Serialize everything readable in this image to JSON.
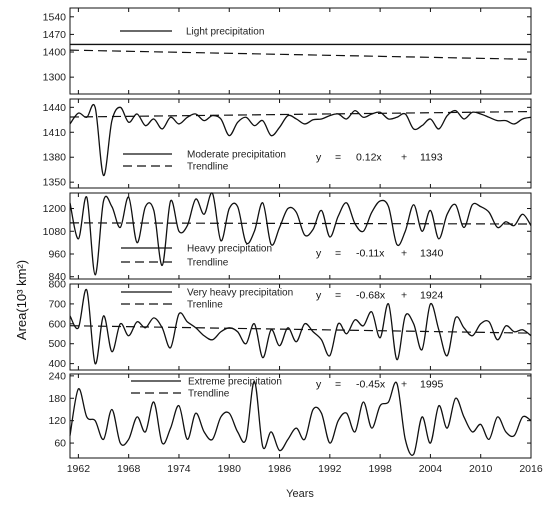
{
  "chart_data": {
    "type": "line",
    "ylabel": "Area(10³ km²)",
    "xlabel": "Years",
    "x_ticks": [
      1962,
      1968,
      1974,
      1980,
      1986,
      1992,
      1998,
      2004,
      2010,
      2016
    ],
    "xlim": [
      1961,
      2016
    ],
    "panels": [
      {
        "name": "light",
        "legend": [
          "Light precipitation"
        ],
        "equation": null,
        "ylim": [
          1233,
          1575
        ],
        "yticks": [
          1300,
          1400,
          1470,
          1540
        ],
        "x": [
          1961,
          2016
        ],
        "values": [
          1430,
          1430
        ]
      },
      {
        "name": "moderate",
        "legend": [
          "Moderate precipitation",
          "Trendline"
        ],
        "equation": [
          "y",
          "=",
          "0.12x",
          "+",
          "1193"
        ],
        "ylim": [
          1343,
          1450
        ],
        "yticks": [
          1350,
          1380,
          1410,
          1440
        ],
        "trend": {
          "slope": 0.12,
          "intercept": 1193
        },
        "x": [
          1961,
          1962,
          1963,
          1964,
          1965,
          1966,
          1967,
          1968,
          1969,
          1970,
          1971,
          1972,
          1973,
          1974,
          1975,
          1976,
          1977,
          1978,
          1979,
          1980,
          1981,
          1982,
          1983,
          1984,
          1985,
          1986,
          1987,
          1988,
          1989,
          1990,
          1991,
          1992,
          1993,
          1994,
          1995,
          1996,
          1997,
          1998,
          1999,
          2000,
          2001,
          2002,
          2003,
          2004,
          2005,
          2006,
          2007,
          2008,
          2009,
          2010,
          2011,
          2012,
          2013,
          2014,
          2015,
          2016
        ],
        "values": [
          1420,
          1433,
          1428,
          1440,
          1358,
          1424,
          1440,
          1422,
          1432,
          1418,
          1426,
          1414,
          1428,
          1420,
          1428,
          1432,
          1424,
          1430,
          1426,
          1406,
          1422,
          1428,
          1418,
          1424,
          1406,
          1416,
          1430,
          1426,
          1420,
          1425,
          1426,
          1430,
          1432,
          1426,
          1436,
          1428,
          1432,
          1434,
          1426,
          1428,
          1432,
          1414,
          1418,
          1426,
          1414,
          1430,
          1436,
          1426,
          1434,
          1432,
          1428,
          1424,
          1424,
          1420,
          1426,
          1428
        ]
      },
      {
        "name": "heavy",
        "legend": [
          "Heavy precipitation",
          "Trendline"
        ],
        "equation": [
          "y",
          "=",
          "-0.11x",
          "+",
          "1340"
        ],
        "ylim": [
          828,
          1282
        ],
        "yticks": [
          840,
          960,
          1080,
          1200
        ],
        "trend": {
          "slope": -0.11,
          "intercept": 1340
        },
        "x": [
          1961,
          1962,
          1963,
          1964,
          1965,
          1966,
          1967,
          1968,
          1969,
          1970,
          1971,
          1972,
          1973,
          1974,
          1975,
          1976,
          1977,
          1978,
          1979,
          1980,
          1981,
          1982,
          1983,
          1984,
          1985,
          1986,
          1987,
          1988,
          1989,
          1990,
          1991,
          1992,
          1993,
          1994,
          1995,
          1996,
          1997,
          1998,
          1999,
          2000,
          2001,
          2002,
          2003,
          2004,
          2005,
          2006,
          2007,
          2008,
          2009,
          2010,
          2011,
          2012,
          2013,
          2014,
          2015,
          2016
        ],
        "values": [
          1230,
          1040,
          1260,
          850,
          1240,
          1210,
          1100,
          1260,
          1020,
          1210,
          1190,
          900,
          1240,
          1080,
          1110,
          1250,
          1170,
          1280,
          1030,
          1200,
          1210,
          1020,
          1080,
          1230,
          1010,
          1100,
          1200,
          1180,
          1060,
          1090,
          1190,
          1050,
          1160,
          1230,
          1120,
          1080,
          1180,
          1240,
          1210,
          1010,
          1080,
          1220,
          1080,
          1190,
          1040,
          1170,
          1220,
          1100,
          1220,
          1210,
          1180,
          1100,
          1130,
          1110,
          1170,
          1110
        ]
      },
      {
        "name": "very heavy",
        "legend": [
          "Very heavy precipitation",
          "Trenline"
        ],
        "equation": [
          "y",
          "=",
          "-0.68x",
          "+",
          "1924"
        ],
        "ylim": [
          368,
          800
        ],
        "yticks": [
          400,
          500,
          600,
          700,
          800
        ],
        "trend": {
          "slope": -0.68,
          "intercept": 1924
        },
        "x": [
          1961,
          1962,
          1963,
          1964,
          1965,
          1966,
          1967,
          1968,
          1969,
          1970,
          1971,
          1972,
          1973,
          1974,
          1975,
          1976,
          1977,
          1978,
          1979,
          1980,
          1981,
          1982,
          1983,
          1984,
          1985,
          1986,
          1987,
          1988,
          1989,
          1990,
          1991,
          1992,
          1993,
          1994,
          1995,
          1996,
          1997,
          1998,
          1999,
          2000,
          2001,
          2002,
          2003,
          2004,
          2005,
          2006,
          2007,
          2008,
          2009,
          2010,
          2011,
          2012,
          2013,
          2014,
          2015,
          2016
        ],
        "values": [
          640,
          580,
          770,
          400,
          640,
          460,
          600,
          540,
          610,
          580,
          630,
          580,
          480,
          650,
          610,
          580,
          540,
          520,
          560,
          580,
          560,
          500,
          600,
          430,
          570,
          490,
          580,
          510,
          600,
          560,
          520,
          440,
          600,
          550,
          620,
          590,
          660,
          530,
          700,
          420,
          640,
          600,
          470,
          700,
          570,
          440,
          630,
          580,
          540,
          600,
          610,
          520,
          590,
          560,
          570,
          540
        ]
      },
      {
        "name": "extreme",
        "legend": [
          "Extreme precipitation",
          "Trendline"
        ],
        "equation": [
          "y",
          "=",
          "-0.45x",
          "+",
          "1995"
        ],
        "ylim": [
          20,
          245
        ],
        "yticks": [
          60,
          120,
          180,
          240
        ],
        "trend": {
          "slope": -0.45,
          "intercept": 1995
        },
        "x": [
          1961,
          1962,
          1963,
          1964,
          1965,
          1966,
          1967,
          1968,
          1969,
          1970,
          1971,
          1972,
          1973,
          1974,
          1975,
          1976,
          1977,
          1978,
          1979,
          1980,
          1981,
          1982,
          1983,
          1984,
          1985,
          1986,
          1987,
          1988,
          1989,
          1990,
          1991,
          1992,
          1993,
          1994,
          1995,
          1996,
          1997,
          1998,
          1999,
          2000,
          2001,
          2002,
          2003,
          2004,
          2005,
          2006,
          2007,
          2008,
          2009,
          2010,
          2011,
          2012,
          2013,
          2014,
          2015,
          2016
        ],
        "values": [
          80,
          205,
          130,
          120,
          70,
          150,
          60,
          70,
          130,
          90,
          170,
          60,
          100,
          160,
          70,
          140,
          90,
          70,
          130,
          140,
          90,
          70,
          225,
          50,
          90,
          40,
          70,
          100,
          70,
          150,
          140,
          60,
          120,
          140,
          90,
          170,
          100,
          160,
          170,
          220,
          70,
          30,
          130,
          60,
          160,
          100,
          180,
          130,
          90,
          110,
          70,
          130,
          90,
          80,
          130,
          120
        ]
      }
    ]
  }
}
